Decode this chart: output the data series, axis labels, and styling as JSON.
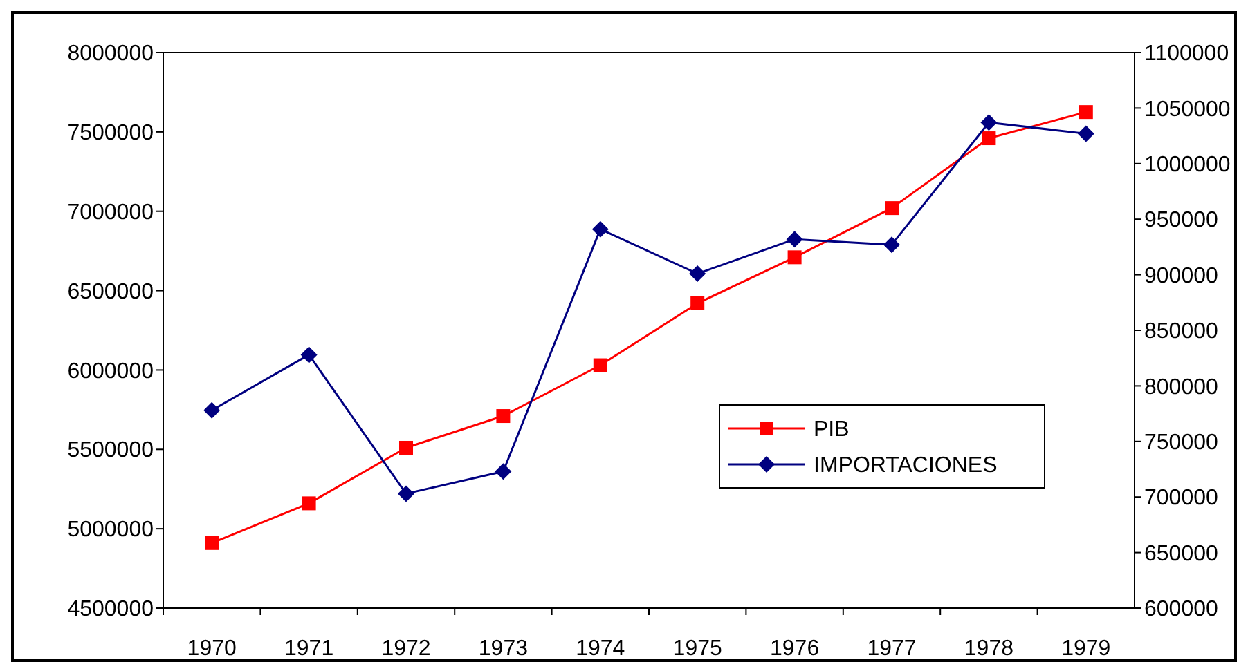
{
  "chart_data": {
    "type": "line",
    "categories": [
      "1970",
      "1971",
      "1972",
      "1973",
      "1974",
      "1975",
      "1976",
      "1977",
      "1978",
      "1979"
    ],
    "series": [
      {
        "name": "PIB",
        "color": "#ff0000",
        "marker": "square",
        "values": [
          4910000,
          5160000,
          5510000,
          5710000,
          6030000,
          6420000,
          6710000,
          7020000,
          7460000,
          7625000
        ]
      },
      {
        "name": "IMPORTACIONES",
        "color": "#000080",
        "marker": "diamond",
        "axis": "y2",
        "values": [
          778000,
          828000,
          703000,
          723000,
          941000,
          901000,
          932000,
          927000,
          1037000,
          1027000
        ]
      }
    ],
    "ylim": [
      4500000,
      8000000
    ],
    "yticks": [
      4500000,
      5000000,
      5500000,
      6000000,
      6500000,
      7000000,
      7500000,
      8000000
    ],
    "y2lim": [
      600000,
      1100000
    ],
    "y2ticks": [
      600000,
      650000,
      700000,
      750000,
      800000,
      850000,
      900000,
      950000,
      1000000,
      1050000,
      1100000
    ],
    "legend": "right",
    "grid": false
  }
}
